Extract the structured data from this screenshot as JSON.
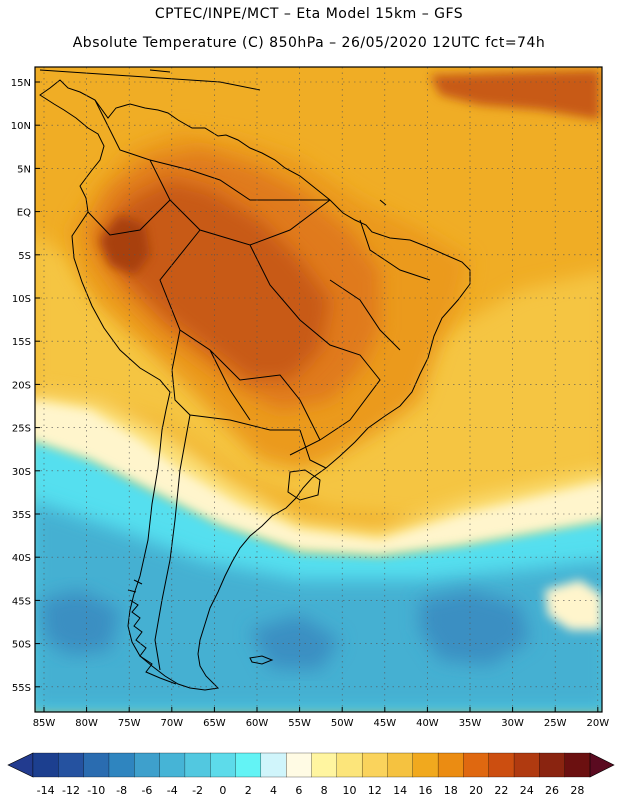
{
  "title_line1": "CPTEC/INPE/MCT –  Eta Model 15km – GFS",
  "title_line2": "Absolute Temperature (C) 850hPa – 26/05/2020 12UTC fct=74h",
  "lat_labels": [
    "15N",
    "10N",
    "5N",
    "EQ",
    "5S",
    "10S",
    "15S",
    "20S",
    "25S",
    "30S",
    "35S",
    "40S",
    "45S",
    "50S",
    "55S"
  ],
  "lon_labels": [
    "85W",
    "80W",
    "75W",
    "70W",
    "65W",
    "60W",
    "55W",
    "50W",
    "45W",
    "40W",
    "35W",
    "30W",
    "25W",
    "20W"
  ],
  "colorbar": {
    "labels": [
      "-14",
      "-12",
      "-10",
      "-8",
      "-6",
      "-4",
      "-2",
      "0",
      "2",
      "4",
      "6",
      "8",
      "10",
      "12",
      "14",
      "16",
      "18",
      "20",
      "22",
      "24",
      "26",
      "28"
    ],
    "colors": [
      "#1c3f8f",
      "#2552a0",
      "#2a6cb0",
      "#2f85bf",
      "#3ea0cc",
      "#46b4d6",
      "#52c8e0",
      "#5ddbea",
      "#63f3f5",
      "#d0f5fb",
      "#fffbe4",
      "#fff5a0",
      "#fce57a",
      "#fad35c",
      "#f5c240",
      "#f1a91e",
      "#eb8c12",
      "#df6810",
      "#cc4e10",
      "#b03a10",
      "#8a2410",
      "#6b1010"
    ],
    "under_color": "#223b8f",
    "over_color": "#5a0a20"
  },
  "map_colors": {
    "ocean_warm": "#f0ad25",
    "ocean_mid": "#f5c542",
    "ocean_cool": "#fce17c",
    "pale": "#fff5cc",
    "cyan": "#55dfef",
    "blue": "#44b0d2",
    "deep_blue": "#3a8fc2",
    "hot1": "#e07a1a",
    "hot2": "#c85a14",
    "hot3": "#a84010",
    "orange": "#eb9a1c"
  }
}
